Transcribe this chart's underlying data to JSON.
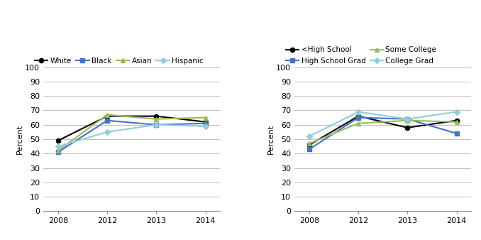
{
  "years": [
    2008,
    2012,
    2013,
    2014
  ],
  "chart1": {
    "series": {
      "White": {
        "values": [
          49,
          66,
          66,
          62
        ],
        "color": "#000000",
        "marker": "o"
      },
      "Black": {
        "values": [
          41,
          63,
          60,
          61
        ],
        "color": "#4472c4",
        "marker": "s"
      },
      "Asian": {
        "values": [
          42,
          67,
          64,
          65
        ],
        "color": "#9bbb59",
        "marker": "^"
      },
      "Hispanic": {
        "values": [
          45,
          55,
          60,
          59
        ],
        "color": "#92cddc",
        "marker": "D"
      }
    }
  },
  "chart2": {
    "series": {
      "<High School": {
        "values": [
          46,
          66,
          58,
          63
        ],
        "color": "#000000",
        "marker": "o"
      },
      "High School Grad": {
        "values": [
          43,
          65,
          64,
          54
        ],
        "color": "#4472c4",
        "marker": "s"
      },
      "Some College": {
        "values": [
          47,
          61,
          63,
          62
        ],
        "color": "#9bbb59",
        "marker": "^"
      },
      "College Grad": {
        "values": [
          52,
          69,
          64,
          69
        ],
        "color": "#92cddc",
        "marker": "D"
      }
    }
  },
  "ylabel": "Percent",
  "ylim": [
    0,
    100
  ],
  "yticks": [
    0,
    10,
    20,
    30,
    40,
    50,
    60,
    70,
    80,
    90,
    100
  ],
  "background_color": "#ffffff",
  "grid_color": "#c0c0c0",
  "legend1_order": [
    "White",
    "Black",
    "Asian",
    "Hispanic"
  ],
  "legend2_order": [
    "<High School",
    "High School Grad",
    "Some College",
    "College Grad"
  ]
}
